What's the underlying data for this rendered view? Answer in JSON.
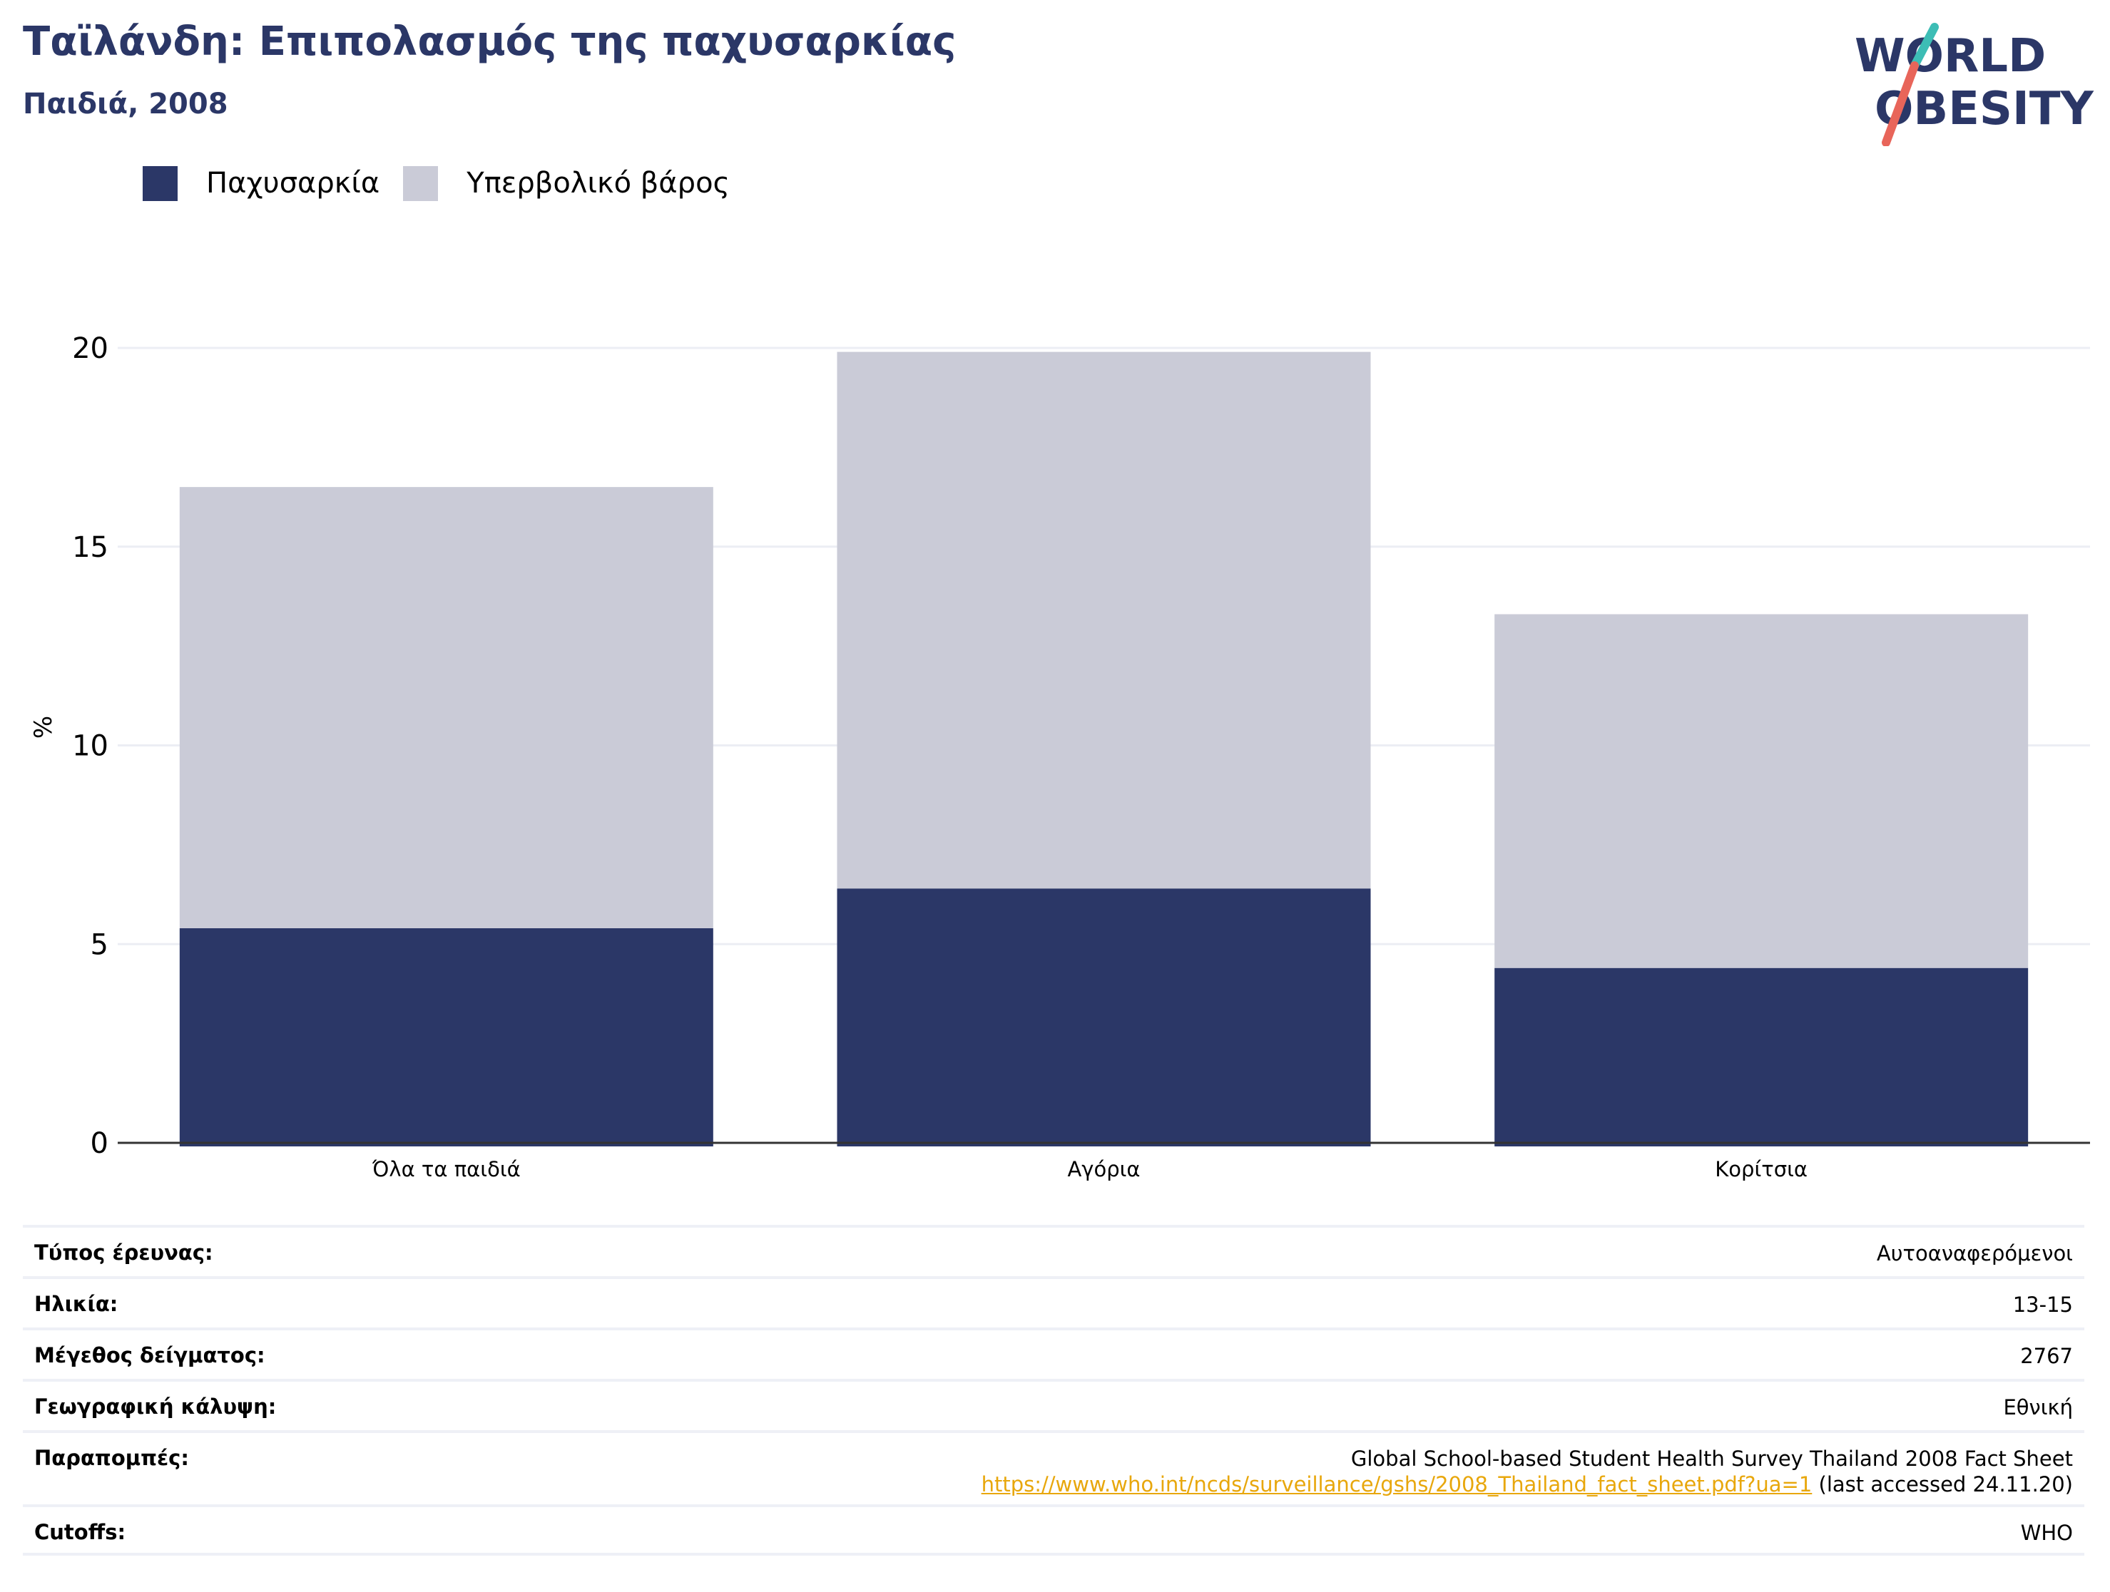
{
  "header": {
    "title": "Ταϊλάνδη: Επιπολασμός της παχυσαρκίας",
    "subtitle": "Παιδιά, 2008"
  },
  "logo": {
    "line1": "WORLD",
    "line2": "OBESITY",
    "colors": {
      "text": "#2b3767",
      "slash_top": "#3dbdb5",
      "slash_bottom": "#e8655a"
    }
  },
  "colors": {
    "obesity": "#2b3767",
    "overweight": "#cacbd7",
    "grid": "#eceef4",
    "axis": "#333333"
  },
  "chart_data": {
    "type": "bar",
    "stacked": true,
    "categories": [
      "Όλα τα παιδιά",
      "Αγόρια",
      "Κορίτσια"
    ],
    "series": [
      {
        "name": "Παχυσαρκία",
        "values": [
          5.4,
          6.4,
          4.4
        ]
      },
      {
        "name": "Υπερβολικό βάρος",
        "values": [
          11.1,
          13.5,
          8.9
        ]
      }
    ],
    "ylabel": "%",
    "ylim": [
      0,
      20
    ],
    "yticks": [
      0,
      5,
      10,
      15,
      20
    ],
    "grid": true,
    "legend_position": "top-left"
  },
  "info": {
    "rows": [
      {
        "label": "Τύπος έρευνας:",
        "value": "Αυτοαναφερόμενοι"
      },
      {
        "label": "Ηλικία:",
        "value": "13-15"
      },
      {
        "label": "Μέγεθος δείγματος:",
        "value": "2767"
      },
      {
        "label": "Γεωγραφική κάλυψη:",
        "value": "Εθνική"
      }
    ],
    "references": {
      "label": "Παραπομπές:",
      "text": "Global School-based Student Health Survey Thailand 2008 Fact Sheet",
      "link": "https://www.who.int/ncds/surveillance/gshs/2008_Thailand_fact_sheet.pdf?ua=1",
      "suffix": " (last accessed 24.11.20)"
    },
    "cutoffs": {
      "label": "Cutoffs:",
      "value": "WHO"
    }
  }
}
